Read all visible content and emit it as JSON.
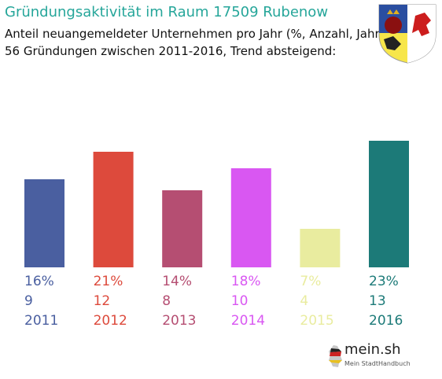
{
  "header": {
    "title": "Gründungsaktivität im Raum 17509 Rubenow",
    "subtitle_line1": "Anteil neuangemeldeter Unternehmen pro Jahr (%, Anzahl, Jahr)",
    "subtitle_line2": "56 Gründungen zwischen 2011-2016, Trend absteigend:"
  },
  "colors": {
    "title": "#26a69a",
    "bars": [
      "#4a5fa0",
      "#dd4a3c",
      "#b54e72",
      "#d957f2",
      "#e9ec9f",
      "#1c7a78"
    ]
  },
  "icons": {
    "crest": "coat-of-arms-icon",
    "logo": "germany-map-icon"
  },
  "logo": {
    "name": "mein.sh",
    "tagline": "Mein StadtHandbuch"
  },
  "chart_data": {
    "type": "bar",
    "categories": [
      "2011",
      "2012",
      "2013",
      "2014",
      "2015",
      "2016"
    ],
    "values": [
      16,
      21,
      14,
      18,
      7,
      23
    ],
    "counts": [
      9,
      12,
      8,
      10,
      4,
      13
    ],
    "percent_labels": [
      "16%",
      "21%",
      "14%",
      "18%",
      "7%",
      "23%"
    ],
    "title": "",
    "xlabel": "",
    "ylabel": "",
    "ylim": [
      0,
      23
    ],
    "grid": false,
    "legend": "none"
  }
}
